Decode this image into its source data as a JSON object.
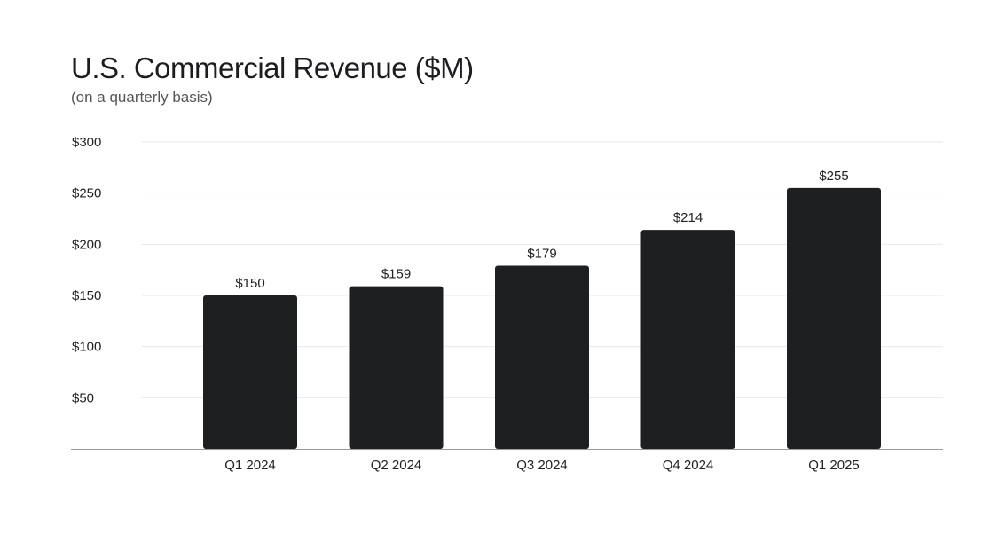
{
  "chart_data": {
    "type": "bar",
    "title": "U.S. Commercial Revenue ($M)",
    "subtitle": "(on a quarterly basis)",
    "categories": [
      "Q1 2024",
      "Q2 2024",
      "Q3 2024",
      "Q4 2024",
      "Q1 2025"
    ],
    "values": [
      150,
      159,
      179,
      214,
      255
    ],
    "data_labels": [
      "$150",
      "$159",
      "$179",
      "$214",
      "$255"
    ],
    "ylim": [
      0,
      300
    ],
    "yticks": [
      50,
      100,
      150,
      200,
      250,
      300
    ],
    "ytick_labels": [
      "$50",
      "$100",
      "$150",
      "$200",
      "$250",
      "$300"
    ],
    "xlabel": "",
    "ylabel": "",
    "grid": true,
    "bar_color": "#1e1f20",
    "grid_color": "#e8e8e8",
    "axis_color": "#9a9a9a"
  }
}
